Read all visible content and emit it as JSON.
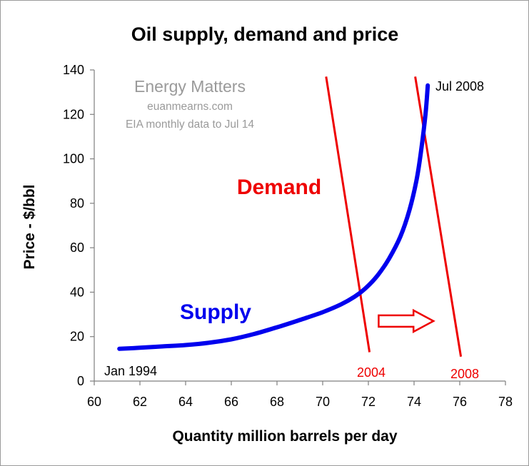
{
  "chart_data": {
    "type": "line",
    "title": "Oil supply, demand and price",
    "xlabel": "Quantity million barrels per day",
    "ylabel": "Price - $/bbl",
    "xlim": [
      60,
      78
    ],
    "ylim": [
      0,
      140
    ],
    "x_ticks": [
      "60",
      "62",
      "64",
      "66",
      "68",
      "70",
      "72",
      "74",
      "76",
      "78"
    ],
    "y_ticks": [
      "0",
      "20",
      "40",
      "60",
      "80",
      "100",
      "120",
      "140"
    ],
    "grid": false,
    "legend": "none",
    "watermark": [
      "Energy Matters",
      "euanmearns.com",
      "EIA monthly data to Jul 14"
    ],
    "series": [
      {
        "name": "Supply",
        "color": "#0000ee",
        "x": [
          61.1,
          62,
          63,
          64,
          65,
          66,
          67,
          68,
          69,
          70,
          70.8,
          71.4,
          71.9,
          72.4,
          72.9,
          73.4,
          73.8,
          74.1,
          74.3,
          74.5,
          74.6
        ],
        "y": [
          14.5,
          15,
          15.6,
          16.2,
          17.2,
          18.8,
          21.2,
          24.2,
          27.5,
          31,
          34.5,
          38,
          42,
          47.5,
          55,
          65,
          77,
          90,
          103,
          120,
          133
        ]
      },
      {
        "name": "Demand",
        "color": "#ee0000",
        "segments": [
          {
            "label": "2004",
            "x": [
              70.15,
              72.05
            ],
            "y": [
              137,
              13
            ]
          },
          {
            "label": "2008",
            "x": [
              74.05,
              76.05
            ],
            "y": [
              137,
              11
            ]
          }
        ]
      }
    ],
    "annotations": {
      "supply_label": "Supply",
      "demand_label": "Demand",
      "start_label": "Jan 1994",
      "end_label": "Jul 2008",
      "demand_2004_label": "2004",
      "demand_2008_label": "2008",
      "arrow": {
        "x_from": 72.45,
        "x_to": 74.85,
        "y": 27,
        "color": "#ee0000"
      }
    }
  }
}
